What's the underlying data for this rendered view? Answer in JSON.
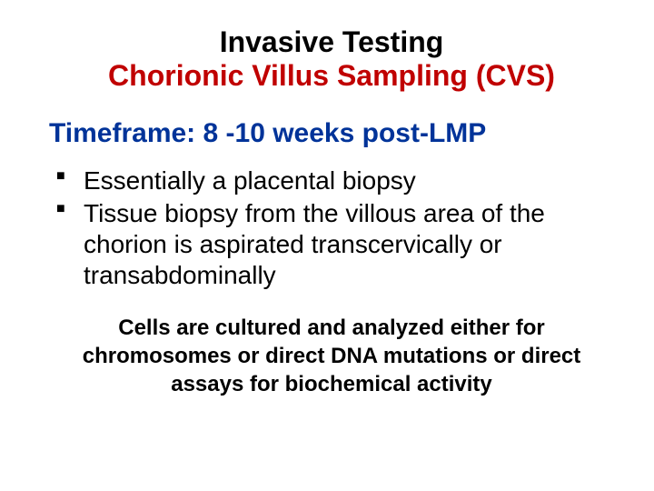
{
  "title": {
    "line1": "Invasive Testing",
    "line2": "Chorionic Villus Sampling (CVS)",
    "color_line1": "#000000",
    "color_line2": "#c00000",
    "fontsize": 32,
    "font_weight": "bold"
  },
  "subtitle": {
    "text": "Timeframe: 8 -10 weeks post-LMP",
    "color": "#003399",
    "fontsize": 30,
    "font_weight": "bold"
  },
  "bullets": {
    "items": [
      "Essentially a placental biopsy",
      "Tissue biopsy from the villous area of the chorion is aspirated transcervically or transabdominally"
    ],
    "fontsize": 28,
    "color": "#000000",
    "marker_color": "#000000"
  },
  "footnote": {
    "text": "Cells are cultured and analyzed either for chromosomes or direct DNA mutations or direct assays for biochemical activity",
    "fontsize": 24,
    "color": "#000000",
    "font_weight": "bold"
  },
  "background_color": "#ffffff"
}
